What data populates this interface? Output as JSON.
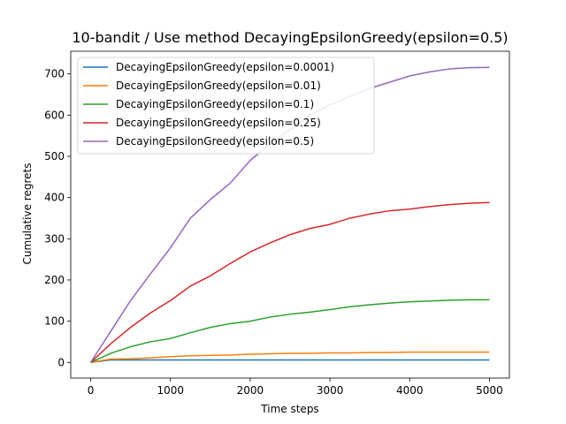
{
  "chart_data": {
    "type": "line",
    "title": "10-bandit / Use method DecayingEpsilonGreedy(epsilon=0.5)",
    "xlabel": "Time steps",
    "ylabel": "Cumulative regrets",
    "xlim": [
      -250,
      5250
    ],
    "ylim": [
      -38,
      755
    ],
    "xticks": [
      0,
      1000,
      2000,
      3000,
      4000,
      5000
    ],
    "yticks": [
      0,
      100,
      200,
      300,
      400,
      500,
      600,
      700
    ],
    "grid": false,
    "legend_position": "top-left",
    "x": [
      0,
      250,
      500,
      750,
      1000,
      1250,
      1500,
      1750,
      2000,
      2250,
      2500,
      2750,
      3000,
      3250,
      3500,
      3750,
      4000,
      4250,
      4500,
      4750,
      5000
    ],
    "series": [
      {
        "name": "DecayingEpsilonGreedy(epsilon=0.0001)",
        "color": "#1f77b4",
        "values": [
          0,
          6,
          6,
          6,
          6,
          6,
          6,
          6,
          6,
          6,
          6,
          6,
          6,
          6,
          6,
          6,
          6,
          6,
          6,
          6,
          6
        ]
      },
      {
        "name": "DecayingEpsilonGreedy(epsilon=0.01)",
        "color": "#ff7f0e",
        "values": [
          0,
          8,
          9,
          11,
          14,
          16,
          17,
          18,
          20,
          21,
          22,
          22,
          23,
          23,
          24,
          24,
          25,
          25,
          25,
          25,
          25
        ]
      },
      {
        "name": "DecayingEpsilonGreedy(epsilon=0.1)",
        "color": "#2ca02c",
        "values": [
          0,
          22,
          38,
          50,
          58,
          72,
          85,
          94,
          100,
          110,
          117,
          122,
          128,
          135,
          140,
          144,
          147,
          149,
          151,
          152,
          152
        ]
      },
      {
        "name": "DecayingEpsilonGreedy(epsilon=0.25)",
        "color": "#d62728",
        "values": [
          0,
          45,
          85,
          120,
          150,
          185,
          210,
          240,
          268,
          290,
          310,
          325,
          335,
          350,
          360,
          368,
          372,
          378,
          383,
          386,
          388
        ]
      },
      {
        "name": "DecayingEpsilonGreedy(epsilon=0.5)",
        "color": "#9467bd",
        "values": [
          0,
          75,
          150,
          215,
          278,
          350,
          395,
          435,
          490,
          530,
          565,
          600,
          625,
          645,
          665,
          680,
          695,
          705,
          712,
          715,
          716
        ]
      }
    ]
  }
}
